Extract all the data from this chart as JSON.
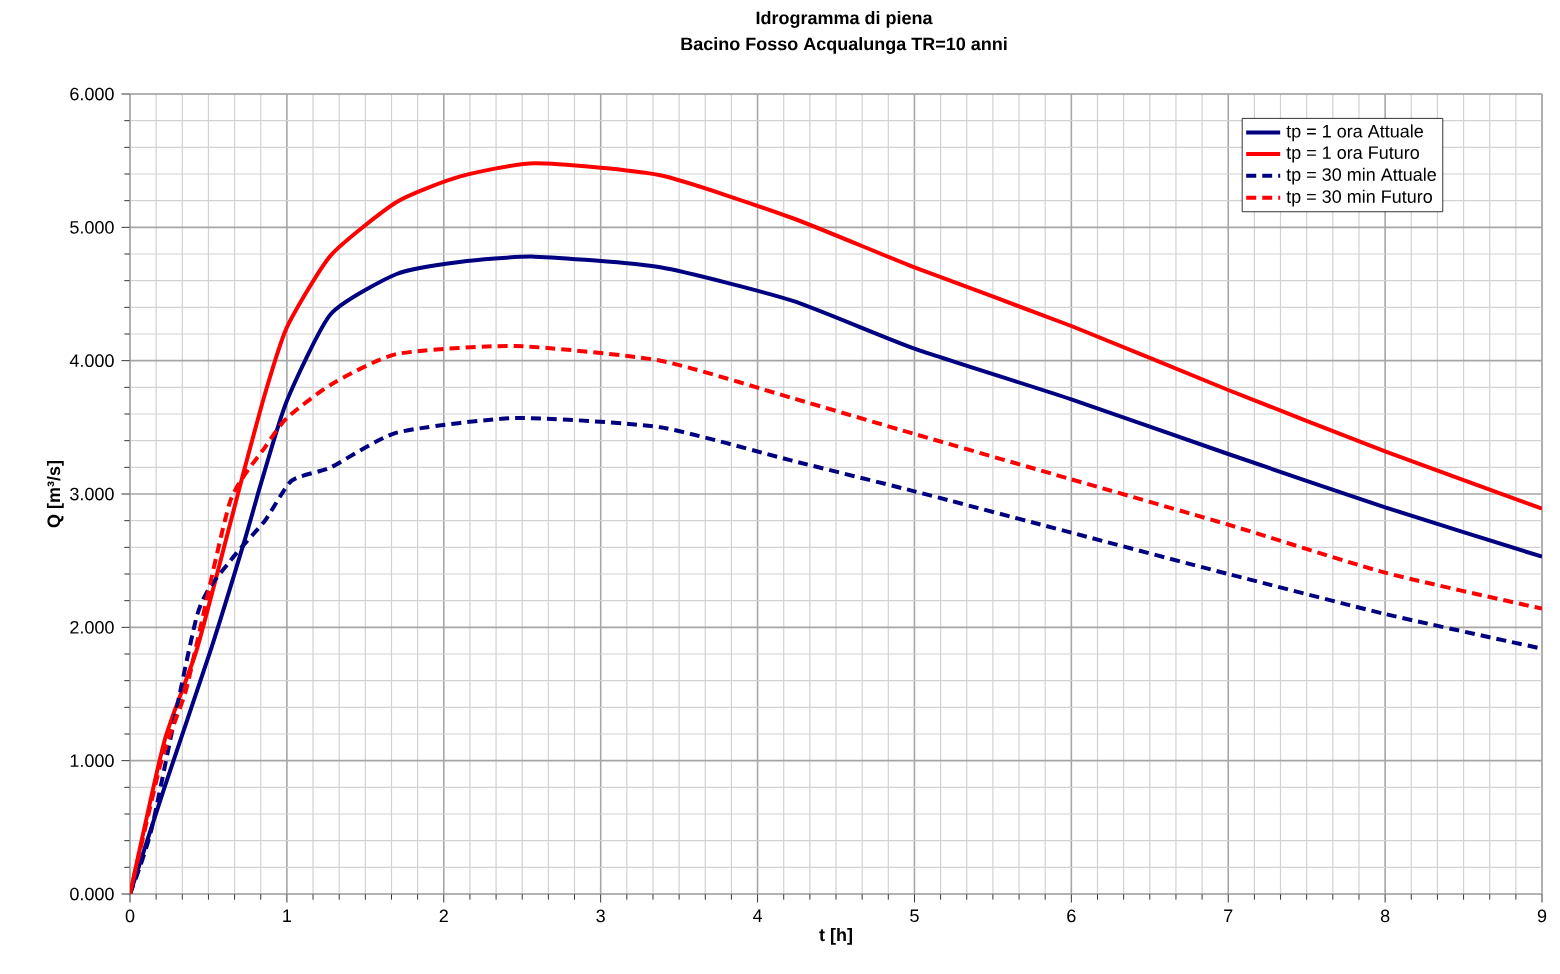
{
  "chart_data": {
    "type": "line",
    "title": "Idrogramma di piena",
    "subtitle": "Bacino Fosso Acqualunga TR=10 anni",
    "xlabel": "t [h]",
    "ylabel": "Q [m³/s]",
    "xlim": [
      0,
      9
    ],
    "xticks": [
      0,
      1,
      2,
      3,
      4,
      5,
      6,
      7,
      8,
      9
    ],
    "ylim": [
      0,
      6
    ],
    "yticks": [
      {
        "value": 0,
        "label": "0.000"
      },
      {
        "value": 1,
        "label": "1.000"
      },
      {
        "value": 2,
        "label": "2.000"
      },
      {
        "value": 3,
        "label": "3.000"
      },
      {
        "value": 4,
        "label": "4.000"
      },
      {
        "value": 5,
        "label": "5.000"
      },
      {
        "value": 6,
        "label": "6.000"
      }
    ],
    "grid": true,
    "legend": "top right",
    "marker": "none",
    "series": [
      {
        "name": "tp = 1 ora Attuale",
        "color": "#000080",
        "line_style": "solid",
        "x": [
          0,
          0.22,
          0.52,
          0.73,
          0.84,
          1.0,
          1.28,
          1.7,
          2.1,
          2.58,
          3.38,
          4.22,
          5.0,
          6.0,
          7.0,
          8.0,
          9.0
        ],
        "values": [
          0,
          0.8,
          1.85,
          2.65,
          3.1,
          3.7,
          4.35,
          4.65,
          4.74,
          4.78,
          4.7,
          4.45,
          4.09,
          3.71,
          3.3,
          2.9,
          2.53
        ]
      },
      {
        "name": "tp = 1 ora Futuro",
        "color": "#ff0000",
        "line_style": "solid",
        "x": [
          0,
          0.22,
          0.43,
          0.71,
          0.86,
          1.0,
          1.28,
          1.7,
          2.1,
          2.58,
          3.38,
          4.22,
          5.0,
          6.0,
          7.0,
          8.0,
          9.0
        ],
        "values": [
          0,
          1.15,
          1.85,
          3.1,
          3.75,
          4.25,
          4.79,
          5.19,
          5.38,
          5.48,
          5.39,
          5.07,
          4.7,
          4.26,
          3.78,
          3.32,
          2.89
        ]
      },
      {
        "name": "tp = 30 min Attuale",
        "color": "#000080",
        "line_style": "dashed",
        "x": [
          0,
          0.14,
          0.43,
          0.64,
          0.86,
          1.03,
          1.28,
          1.7,
          2.46,
          3.38,
          4.22,
          5.0,
          6.0,
          7.0,
          8.0,
          9.0
        ],
        "values": [
          0,
          0.5,
          2.1,
          2.5,
          2.8,
          3.1,
          3.2,
          3.46,
          3.57,
          3.5,
          3.25,
          3.02,
          2.71,
          2.4,
          2.1,
          1.84
        ]
      },
      {
        "name": "tp = 30 min Futuro",
        "color": "#ff0000",
        "line_style": "dashed",
        "x": [
          0,
          0.2,
          0.35,
          0.43,
          0.64,
          0.86,
          1.0,
          1.28,
          1.7,
          2.46,
          3.38,
          4.22,
          5.0,
          6.0,
          7.0,
          8.0,
          9.0
        ],
        "values": [
          0,
          1.0,
          1.5,
          1.9,
          2.95,
          3.35,
          3.57,
          3.82,
          4.05,
          4.11,
          4.0,
          3.72,
          3.45,
          3.11,
          2.77,
          2.41,
          2.14
        ]
      }
    ]
  }
}
